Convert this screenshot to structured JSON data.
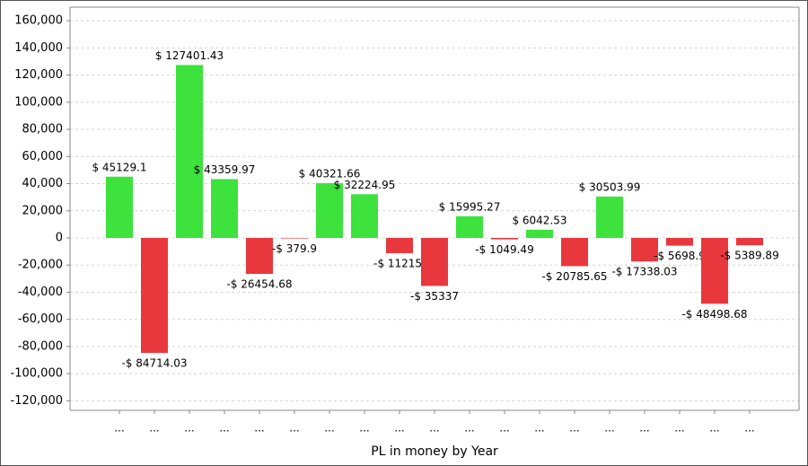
{
  "chart_data": {
    "type": "bar",
    "x_label": "PL in money by Year",
    "categories": [
      "...",
      "...",
      "...",
      "...",
      "...",
      "...",
      "...",
      "...",
      "...",
      "...",
      "...",
      "...",
      "...",
      "...",
      "...",
      "...",
      "...",
      "...",
      "..."
    ],
    "values": [
      45129.1,
      -84714.03,
      127401.43,
      43359.97,
      -26454.68,
      -379.9,
      40321.66,
      32224.95,
      -11215,
      -35337,
      15995.27,
      -1049.49,
      6042.53,
      -20785.65,
      30503.99,
      -17338.03,
      -5698.9,
      -48498.68,
      -5389.89
    ],
    "value_labels": [
      "$ 45129.1",
      "-$ 84714.03",
      "$ 127401.43",
      "$ 43359.97",
      "-$ 26454.68",
      "-$ 379.9",
      "$ 40321.66",
      "$ 32224.95",
      "-$ 11215.",
      "-$ 35337",
      "$ 15995.27",
      "-$ 1049.49",
      "$ 6042.53",
      "-$ 20785.65",
      "$ 30503.99",
      "-$ 17338.03",
      "-$ 5698.9",
      "-$ 48498.68",
      "-$ 5389.89"
    ],
    "positive_color": "#3de23d",
    "negative_color": "#e8383d",
    "ylim": [
      -127000,
      170000
    ],
    "yticks": [
      {
        "value": 160000,
        "label": "160,000"
      },
      {
        "value": 140000,
        "label": "140,000"
      },
      {
        "value": 120000,
        "label": "120,000"
      },
      {
        "value": 100000,
        "label": "100,000"
      },
      {
        "value": 80000,
        "label": "80,000"
      },
      {
        "value": 60000,
        "label": "60,000"
      },
      {
        "value": 40000,
        "label": "40,000"
      },
      {
        "value": 20000,
        "label": "20,000"
      },
      0,
      {
        "value": -20000,
        "label": "-20,000"
      },
      {
        "value": -40000,
        "label": "-40,000"
      },
      {
        "value": -60000,
        "label": "-60,000"
      },
      {
        "value": -80000,
        "label": "-80,000"
      },
      {
        "value": -100000,
        "label": "-100,000"
      },
      {
        "value": -120000,
        "label": "-120,000"
      }
    ],
    "grid": true
  }
}
